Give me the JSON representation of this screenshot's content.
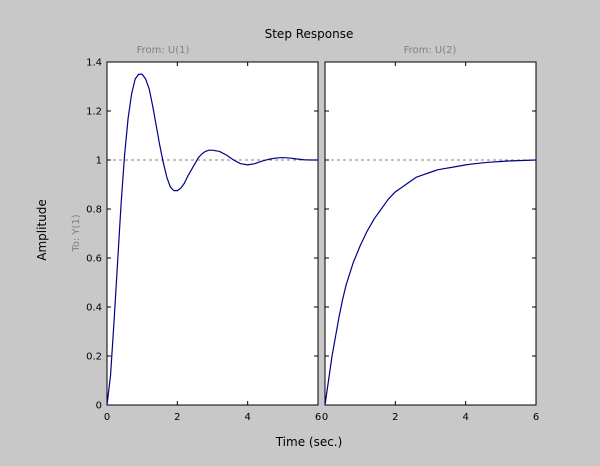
{
  "chart_data": {
    "type": "line",
    "title": "Step Response",
    "xlabel": "Time (sec.)",
    "ylabel": "Amplitude",
    "output_label": "To: Y(1)",
    "ylim": [
      0,
      1.4
    ],
    "xlim": [
      0,
      6
    ],
    "y_ticks": [
      0,
      0.2,
      0.4,
      0.6,
      0.8,
      1,
      1.2,
      1.4
    ],
    "y_tick_labels": [
      "0",
      "0.2",
      "0.4",
      "0.6",
      "0.8",
      "1",
      "1.2",
      "1.4"
    ],
    "reference_line": 1,
    "grid": false,
    "line_color": "#00008b",
    "reference_color": "#808080",
    "panels": [
      {
        "input_label": "From: U(1)",
        "x_tick_labels": [
          "0",
          "2",
          "4",
          "6"
        ],
        "x_ticks": [
          0,
          2,
          4,
          6
        ],
        "series": [
          {
            "x": [
              0,
              0.1,
              0.2,
              0.3,
              0.4,
              0.5,
              0.6,
              0.7,
              0.8,
              0.9,
              1.0,
              1.1,
              1.2,
              1.3,
              1.4,
              1.5,
              1.6,
              1.7,
              1.8,
              1.9,
              2.0,
              2.1,
              2.2,
              2.3,
              2.4,
              2.5,
              2.6,
              2.7,
              2.8,
              2.9,
              3.0,
              3.2,
              3.4,
              3.6,
              3.8,
              4.0,
              4.2,
              4.4,
              4.6,
              4.8,
              5.0,
              5.2,
              5.4,
              5.6,
              5.8,
              6.0
            ],
            "y": [
              0,
              0.12,
              0.34,
              0.58,
              0.82,
              1.02,
              1.17,
              1.27,
              1.33,
              1.35,
              1.35,
              1.33,
              1.29,
              1.22,
              1.14,
              1.06,
              0.99,
              0.93,
              0.89,
              0.875,
              0.875,
              0.885,
              0.905,
              0.935,
              0.96,
              0.985,
              1.01,
              1.025,
              1.035,
              1.04,
              1.04,
              1.035,
              1.02,
              1.0,
              0.985,
              0.98,
              0.985,
              0.995,
              1.003,
              1.008,
              1.01,
              1.008,
              1.004,
              1.001,
              1.0,
              1.0
            ]
          }
        ]
      },
      {
        "input_label": "From: U(2)",
        "x_tick_labels": [
          "0",
          "2",
          "4",
          "6"
        ],
        "x_ticks": [
          0,
          2,
          4,
          6
        ],
        "series": [
          {
            "x": [
              0,
              0.1,
              0.2,
              0.3,
              0.4,
              0.5,
              0.6,
              0.8,
              1.0,
              1.2,
              1.4,
              1.6,
              1.8,
              2.0,
              2.2,
              2.4,
              2.6,
              2.8,
              3.0,
              3.2,
              3.4,
              3.6,
              3.8,
              4.0,
              4.2,
              4.4,
              4.6,
              4.8,
              5.0,
              5.2,
              5.4,
              5.6,
              5.8,
              6.0
            ],
            "y": [
              0,
              0.1,
              0.2,
              0.28,
              0.36,
              0.43,
              0.49,
              0.58,
              0.65,
              0.71,
              0.76,
              0.8,
              0.84,
              0.87,
              0.89,
              0.91,
              0.93,
              0.94,
              0.95,
              0.96,
              0.965,
              0.97,
              0.975,
              0.98,
              0.984,
              0.987,
              0.99,
              0.992,
              0.994,
              0.996,
              0.997,
              0.998,
              0.999,
              1.0
            ]
          }
        ]
      }
    ]
  }
}
